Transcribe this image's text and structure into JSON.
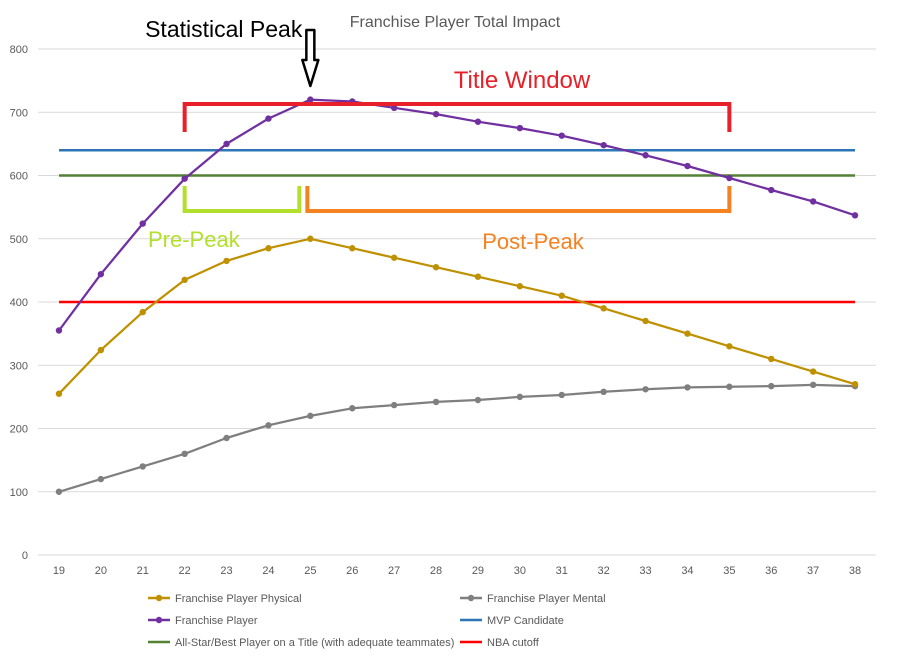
{
  "chart_data": {
    "type": "line",
    "title": "Franchise Player Total Impact",
    "xlabel": "",
    "ylabel": "",
    "x": [
      19,
      20,
      21,
      22,
      23,
      24,
      25,
      26,
      27,
      28,
      29,
      30,
      31,
      32,
      33,
      34,
      35,
      36,
      37,
      38
    ],
    "ylim": [
      0,
      800
    ],
    "yticks": [
      0,
      100,
      200,
      300,
      400,
      500,
      600,
      700,
      800
    ],
    "grid": true,
    "legend_position": "bottom",
    "series": [
      {
        "name": "Franchise Player Physical",
        "color": "#bf9000",
        "markers": true,
        "values": [
          255,
          324,
          384,
          435,
          465,
          485,
          500,
          485,
          470,
          455,
          440,
          425,
          410,
          390,
          370,
          350,
          330,
          310,
          290,
          270
        ]
      },
      {
        "name": "Franchise Player Mental",
        "color": "#7f7f7f",
        "markers": true,
        "values": [
          100,
          120,
          140,
          160,
          185,
          205,
          220,
          232,
          237,
          242,
          245,
          250,
          253,
          258,
          262,
          265,
          266,
          267,
          269,
          267
        ]
      },
      {
        "name": "Franchise Player",
        "color": "#7030a0",
        "markers": true,
        "values": [
          355,
          444,
          524,
          595,
          650,
          690,
          720,
          717,
          707,
          697,
          685,
          675,
          663,
          648,
          632,
          615,
          596,
          577,
          559,
          537
        ]
      },
      {
        "name": "MVP Candidate",
        "color": "#2e75b6",
        "markers": false,
        "values": [
          640,
          640,
          640,
          640,
          640,
          640,
          640,
          640,
          640,
          640,
          640,
          640,
          640,
          640,
          640,
          640,
          640,
          640,
          640,
          640
        ]
      },
      {
        "name": "All-Star/Best Player on a Title (with adequate teammates)",
        "color": "#548235",
        "markers": false,
        "values": [
          600,
          600,
          600,
          600,
          600,
          600,
          600,
          600,
          600,
          600,
          600,
          600,
          600,
          600,
          600,
          600,
          600,
          600,
          600,
          600
        ]
      },
      {
        "name": "NBA cutoff",
        "color": "#ff0000",
        "markers": false,
        "values": [
          400,
          400,
          400,
          400,
          400,
          400,
          400,
          400,
          400,
          400,
          400,
          400,
          400,
          400,
          400,
          400,
          400,
          400,
          400,
          400
        ]
      }
    ],
    "annotations": {
      "statistical_peak": {
        "text": "Statistical Peak",
        "x": 25,
        "color": "#000000"
      },
      "title_window": {
        "text": "Title Window",
        "x_from": 22,
        "x_to": 35,
        "color": "#e8202a"
      },
      "pre_peak": {
        "text": "Pre-Peak",
        "x_from": 22,
        "x_to": 25,
        "color": "#b2e02a"
      },
      "post_peak": {
        "text": "Post-Peak",
        "x_from": 25,
        "x_to": 35,
        "color": "#f58220"
      }
    }
  }
}
